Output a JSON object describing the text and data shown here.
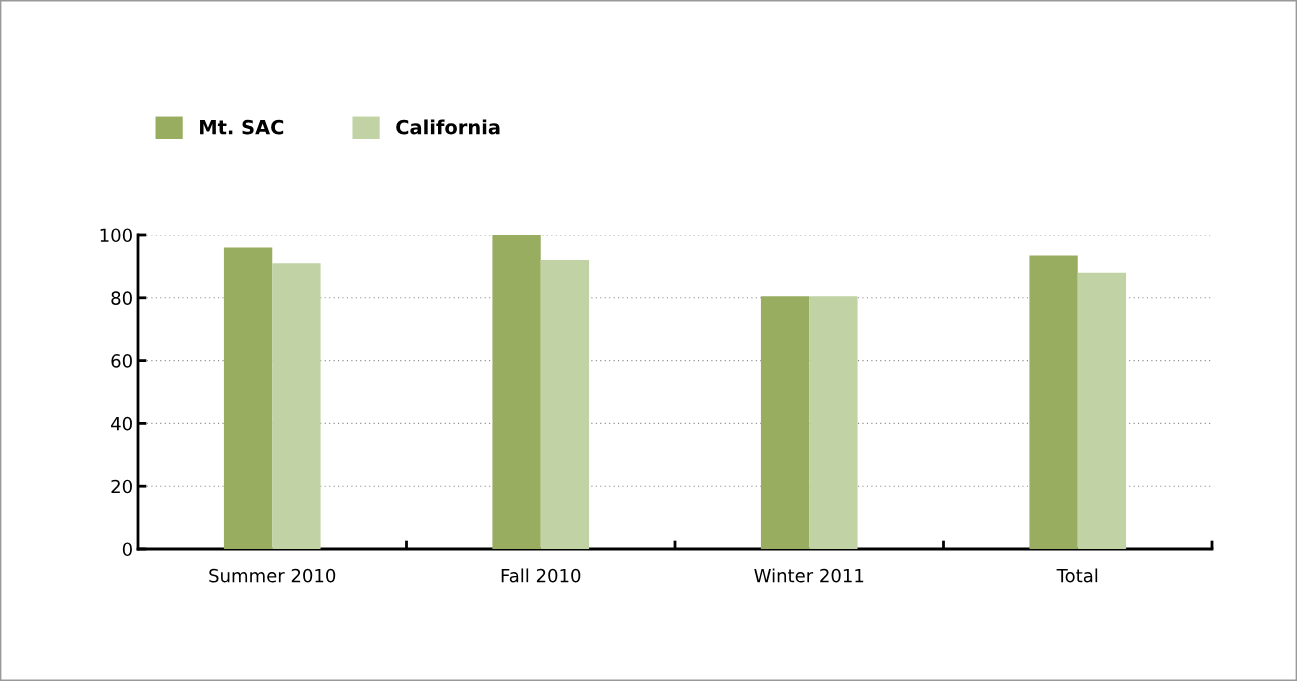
{
  "chart_data": {
    "type": "bar",
    "categories": [
      "Summer 2010",
      "Fall 2010",
      "Winter 2011",
      "Total"
    ],
    "series": [
      {
        "name": "Mt. SAC",
        "color": "#98ad5f",
        "values": [
          96,
          100,
          80.5,
          93.5
        ]
      },
      {
        "name": "California",
        "color": "#c1d2a5",
        "values": [
          91,
          92,
          80.5,
          88
        ]
      }
    ],
    "ylim": [
      0,
      100
    ],
    "yticks": [
      0,
      20,
      40,
      60,
      80,
      100
    ],
    "grid": "y",
    "legend": "top left"
  }
}
